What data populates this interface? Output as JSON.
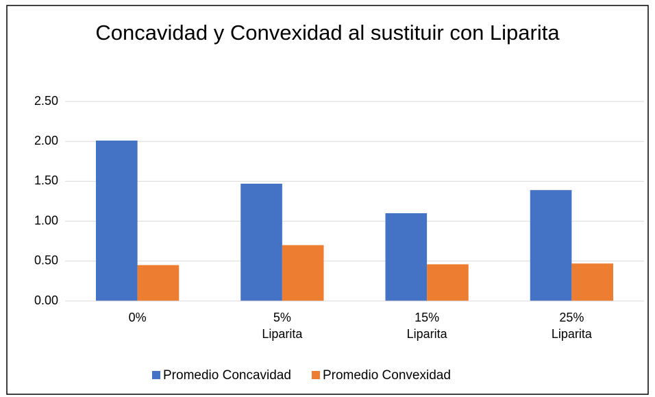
{
  "chart_data": {
    "type": "bar",
    "title": "Concavidad y Convexidad al sustituir con Liparita",
    "categories": [
      "0%",
      "5% Liparita",
      "15% Liparita",
      "25% Liparita"
    ],
    "series": [
      {
        "name": "Promedio Concavidad",
        "color": "#4472c4",
        "values": [
          2.01,
          1.47,
          1.1,
          1.39
        ]
      },
      {
        "name": "Promedio Convexidad",
        "color": "#ed7d31",
        "values": [
          0.45,
          0.7,
          0.46,
          0.47
        ]
      }
    ],
    "ylim": [
      0,
      2.5
    ],
    "yticks": [
      {
        "value": 0,
        "label": "0.00"
      },
      {
        "value": 0.5,
        "label": "0.50"
      },
      {
        "value": 1,
        "label": "1.00"
      },
      {
        "value": 1.5,
        "label": "1.50"
      },
      {
        "value": 2,
        "label": "2.00"
      },
      {
        "value": 2.5,
        "label": "2.50"
      }
    ],
    "grid": true,
    "legend": "bottom"
  }
}
